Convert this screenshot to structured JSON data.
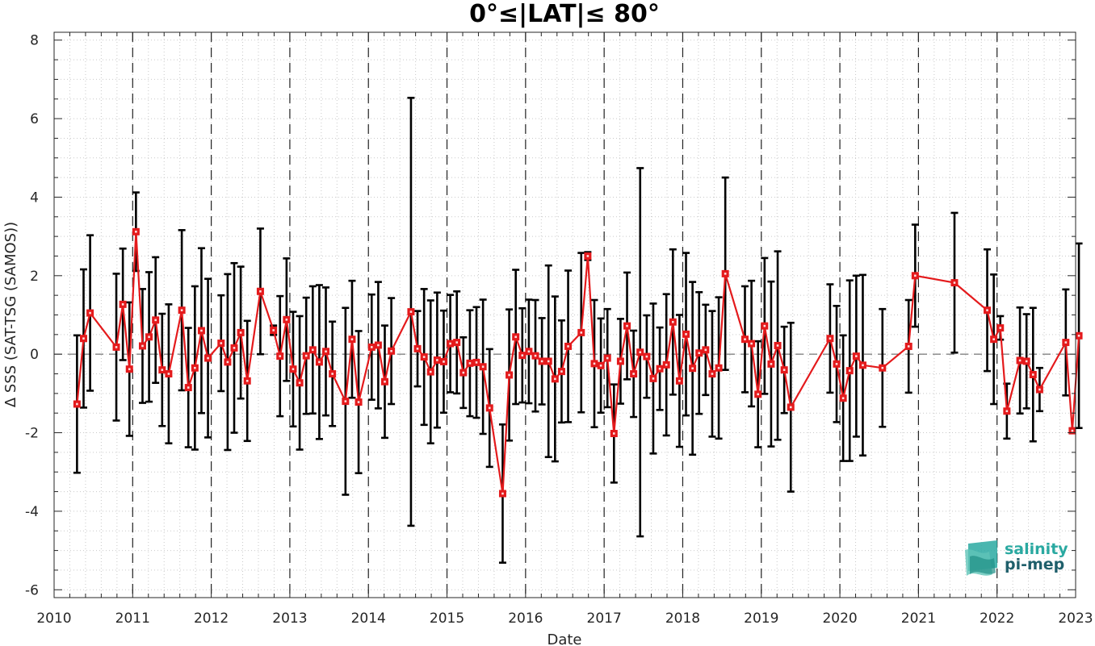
{
  "chart_data": {
    "type": "line",
    "title": "0°≤|LAT|≤ 80°",
    "xlabel": "Date",
    "ylabel": "Δ SSS (SAT-TSG (SAMOS))",
    "xlim": [
      2010,
      2023
    ],
    "ylim": [
      -6.2,
      8.2
    ],
    "xticks": [
      "2010",
      "2011",
      "2012",
      "2013",
      "2014",
      "2015",
      "2016",
      "2017",
      "2018",
      "2019",
      "2020",
      "2021",
      "2022",
      "2023"
    ],
    "yticks": [
      "-6",
      "-4",
      "-2",
      "0",
      "2",
      "4",
      "6",
      "8"
    ],
    "grid": "minor dotted",
    "year_boundaries": "dashed vertical lines at each year start",
    "zero_line": "dashed horizontal line at 0",
    "series": [
      {
        "color": "#e41a1c",
        "marker": "square",
        "errorbar_color": "#000000",
        "points": [
          {
            "x": "2010-04",
            "y": -1.27,
            "err": 1.75
          },
          {
            "x": "2010-05",
            "y": 0.4,
            "err": 1.76
          },
          {
            "x": "2010-06",
            "y": 1.05,
            "err": 1.98
          },
          {
            "x": "2010-10",
            "y": 0.18,
            "err": 1.87
          },
          {
            "x": "2010-11",
            "y": 1.27,
            "err": 1.42
          },
          {
            "x": "2010-12",
            "y": -0.38,
            "err": 1.7
          },
          {
            "x": "2011-01",
            "y": 3.12,
            "err": 1.0
          },
          {
            "x": "2011-02",
            "y": 0.21,
            "err": 1.45
          },
          {
            "x": "2011-03",
            "y": 0.44,
            "err": 1.65
          },
          {
            "x": "2011-04",
            "y": 0.87,
            "err": 1.6
          },
          {
            "x": "2011-05",
            "y": -0.4,
            "err": 1.43
          },
          {
            "x": "2011-06",
            "y": -0.5,
            "err": 1.77
          },
          {
            "x": "2011-08",
            "y": 1.12,
            "err": 2.04
          },
          {
            "x": "2011-09",
            "y": -0.85,
            "err": 1.52
          },
          {
            "x": "2011-10",
            "y": -0.35,
            "err": 2.08
          },
          {
            "x": "2011-11",
            "y": 0.6,
            "err": 2.1
          },
          {
            "x": "2011-12",
            "y": -0.1,
            "err": 2.02
          },
          {
            "x": "2012-02",
            "y": 0.28,
            "err": 1.22
          },
          {
            "x": "2012-03",
            "y": -0.2,
            "err": 2.24
          },
          {
            "x": "2012-04",
            "y": 0.16,
            "err": 2.16
          },
          {
            "x": "2012-05",
            "y": 0.55,
            "err": 1.68
          },
          {
            "x": "2012-06",
            "y": -0.68,
            "err": 1.53
          },
          {
            "x": "2012-08",
            "y": 1.6,
            "err": 1.6
          },
          {
            "x": "2012-10",
            "y": 0.61,
            "err": 0.12
          },
          {
            "x": "2012-11",
            "y": -0.05,
            "err": 1.53
          },
          {
            "x": "2012-12",
            "y": 0.88,
            "err": 1.56
          },
          {
            "x": "2013-01",
            "y": -0.38,
            "err": 1.46
          },
          {
            "x": "2013-02",
            "y": -0.73,
            "err": 1.7
          },
          {
            "x": "2013-03",
            "y": -0.04,
            "err": 1.48
          },
          {
            "x": "2013-04",
            "y": 0.11,
            "err": 1.62
          },
          {
            "x": "2013-05",
            "y": -0.2,
            "err": 1.96
          },
          {
            "x": "2013-06",
            "y": 0.07,
            "err": 1.63
          },
          {
            "x": "2013-07",
            "y": -0.5,
            "err": 1.33
          },
          {
            "x": "2013-09",
            "y": -1.2,
            "err": 2.38
          },
          {
            "x": "2013-10",
            "y": 0.38,
            "err": 1.49
          },
          {
            "x": "2013-11",
            "y": -1.22,
            "err": 1.81
          },
          {
            "x": "2014-01",
            "y": 0.18,
            "err": 1.34
          },
          {
            "x": "2014-02",
            "y": 0.23,
            "err": 1.61
          },
          {
            "x": "2014-03",
            "y": -0.7,
            "err": 1.43
          },
          {
            "x": "2014-04",
            "y": 0.08,
            "err": 1.35
          },
          {
            "x": "2014-07",
            "y": 1.08,
            "err": 5.45
          },
          {
            "x": "2014-08",
            "y": 0.14,
            "err": 0.96
          },
          {
            "x": "2014-09",
            "y": -0.07,
            "err": 1.73
          },
          {
            "x": "2014-10",
            "y": -0.45,
            "err": 1.82
          },
          {
            "x": "2014-11",
            "y": -0.15,
            "err": 1.72
          },
          {
            "x": "2014-12",
            "y": -0.19,
            "err": 1.3
          },
          {
            "x": "2015-01",
            "y": 0.27,
            "err": 1.24
          },
          {
            "x": "2015-02",
            "y": 0.3,
            "err": 1.3
          },
          {
            "x": "2015-03",
            "y": -0.47,
            "err": 0.9
          },
          {
            "x": "2015-04",
            "y": -0.23,
            "err": 1.35
          },
          {
            "x": "2015-05",
            "y": -0.21,
            "err": 1.41
          },
          {
            "x": "2015-06",
            "y": -0.32,
            "err": 1.71
          },
          {
            "x": "2015-07",
            "y": -1.37,
            "err": 1.5
          },
          {
            "x": "2015-09",
            "y": -3.55,
            "err": 1.76
          },
          {
            "x": "2015-10",
            "y": -0.53,
            "err": 1.67
          },
          {
            "x": "2015-11",
            "y": 0.44,
            "err": 1.71
          },
          {
            "x": "2015-12",
            "y": -0.03,
            "err": 1.2
          },
          {
            "x": "2016-01",
            "y": 0.07,
            "err": 1.32
          },
          {
            "x": "2016-02",
            "y": -0.04,
            "err": 1.42
          },
          {
            "x": "2016-03",
            "y": -0.18,
            "err": 1.1
          },
          {
            "x": "2016-04",
            "y": -0.18,
            "err": 2.44
          },
          {
            "x": "2016-05",
            "y": -0.63,
            "err": 2.1
          },
          {
            "x": "2016-06",
            "y": -0.44,
            "err": 1.3
          },
          {
            "x": "2016-07",
            "y": 0.2,
            "err": 1.93
          },
          {
            "x": "2016-09",
            "y": 0.55,
            "err": 2.03
          },
          {
            "x": "2016-10",
            "y": 2.5,
            "err": 0.1
          },
          {
            "x": "2016-11",
            "y": -0.24,
            "err": 1.62
          },
          {
            "x": "2016-12",
            "y": -0.29,
            "err": 1.2
          },
          {
            "x": "2017-01",
            "y": -0.1,
            "err": 1.25
          },
          {
            "x": "2017-02",
            "y": -2.02,
            "err": 1.25
          },
          {
            "x": "2017-03",
            "y": -0.18,
            "err": 1.08
          },
          {
            "x": "2017-04",
            "y": 0.72,
            "err": 1.36
          },
          {
            "x": "2017-05",
            "y": -0.5,
            "err": 1.1
          },
          {
            "x": "2017-06",
            "y": 0.05,
            "err": 4.69
          },
          {
            "x": "2017-07",
            "y": -0.06,
            "err": 1.05
          },
          {
            "x": "2017-08",
            "y": -0.62,
            "err": 1.91
          },
          {
            "x": "2017-09",
            "y": -0.37,
            "err": 1.05
          },
          {
            "x": "2017-10",
            "y": -0.27,
            "err": 1.8
          },
          {
            "x": "2017-11",
            "y": 0.82,
            "err": 1.85
          },
          {
            "x": "2017-12",
            "y": -0.68,
            "err": 1.68
          },
          {
            "x": "2018-01",
            "y": 0.51,
            "err": 2.07
          },
          {
            "x": "2018-02",
            "y": -0.36,
            "err": 2.2
          },
          {
            "x": "2018-03",
            "y": 0.03,
            "err": 1.55
          },
          {
            "x": "2018-04",
            "y": 0.11,
            "err": 1.15
          },
          {
            "x": "2018-05",
            "y": -0.5,
            "err": 1.6
          },
          {
            "x": "2018-06",
            "y": -0.35,
            "err": 1.8
          },
          {
            "x": "2018-07",
            "y": 2.05,
            "err": 2.45
          },
          {
            "x": "2018-10",
            "y": 0.38,
            "err": 1.35
          },
          {
            "x": "2018-11",
            "y": 0.27,
            "err": 1.6
          },
          {
            "x": "2018-12",
            "y": -1.02,
            "err": 1.35
          },
          {
            "x": "2019-01",
            "y": 0.72,
            "err": 1.73
          },
          {
            "x": "2019-02",
            "y": -0.25,
            "err": 2.1
          },
          {
            "x": "2019-03",
            "y": 0.22,
            "err": 2.4
          },
          {
            "x": "2019-04",
            "y": -0.4,
            "err": 1.1
          },
          {
            "x": "2019-05",
            "y": -1.35,
            "err": 2.15
          },
          {
            "x": "2019-11",
            "y": 0.4,
            "err": 1.38
          },
          {
            "x": "2019-12",
            "y": -0.25,
            "err": 1.48
          },
          {
            "x": "2020-01",
            "y": -1.12,
            "err": 1.6
          },
          {
            "x": "2020-02",
            "y": -0.42,
            "err": 2.3
          },
          {
            "x": "2020-03",
            "y": -0.05,
            "err": 2.05
          },
          {
            "x": "2020-04",
            "y": -0.28,
            "err": 2.3
          },
          {
            "x": "2020-07",
            "y": -0.35,
            "err": 1.5
          },
          {
            "x": "2020-11",
            "y": 0.2,
            "err": 1.18
          },
          {
            "x": "2020-12",
            "y": 2.0,
            "err": 1.3
          },
          {
            "x": "2021-06",
            "y": 1.82,
            "err": 1.78
          },
          {
            "x": "2021-11",
            "y": 1.12,
            "err": 1.55
          },
          {
            "x": "2021-12",
            "y": 0.38,
            "err": 1.65
          },
          {
            "x": "2022-01",
            "y": 0.67,
            "err": 0.3
          },
          {
            "x": "2022-02",
            "y": -1.45,
            "err": 0.7
          },
          {
            "x": "2022-04",
            "y": -0.16,
            "err": 1.35
          },
          {
            "x": "2022-05",
            "y": -0.18,
            "err": 1.2
          },
          {
            "x": "2022-06",
            "y": -0.52,
            "err": 1.7
          },
          {
            "x": "2022-07",
            "y": -0.9,
            "err": 0.55
          },
          {
            "x": "2022-11",
            "y": 0.3,
            "err": 1.35
          },
          {
            "x": "2022-12",
            "y": -1.95,
            "err": 0.06
          },
          {
            "x": "2023-01",
            "y": 0.47,
            "err": 2.35
          }
        ]
      }
    ]
  },
  "logo": {
    "line1": "salinity",
    "line2": "pi-mep",
    "colors": [
      "#2aa9a1",
      "#1f5f6b"
    ]
  }
}
